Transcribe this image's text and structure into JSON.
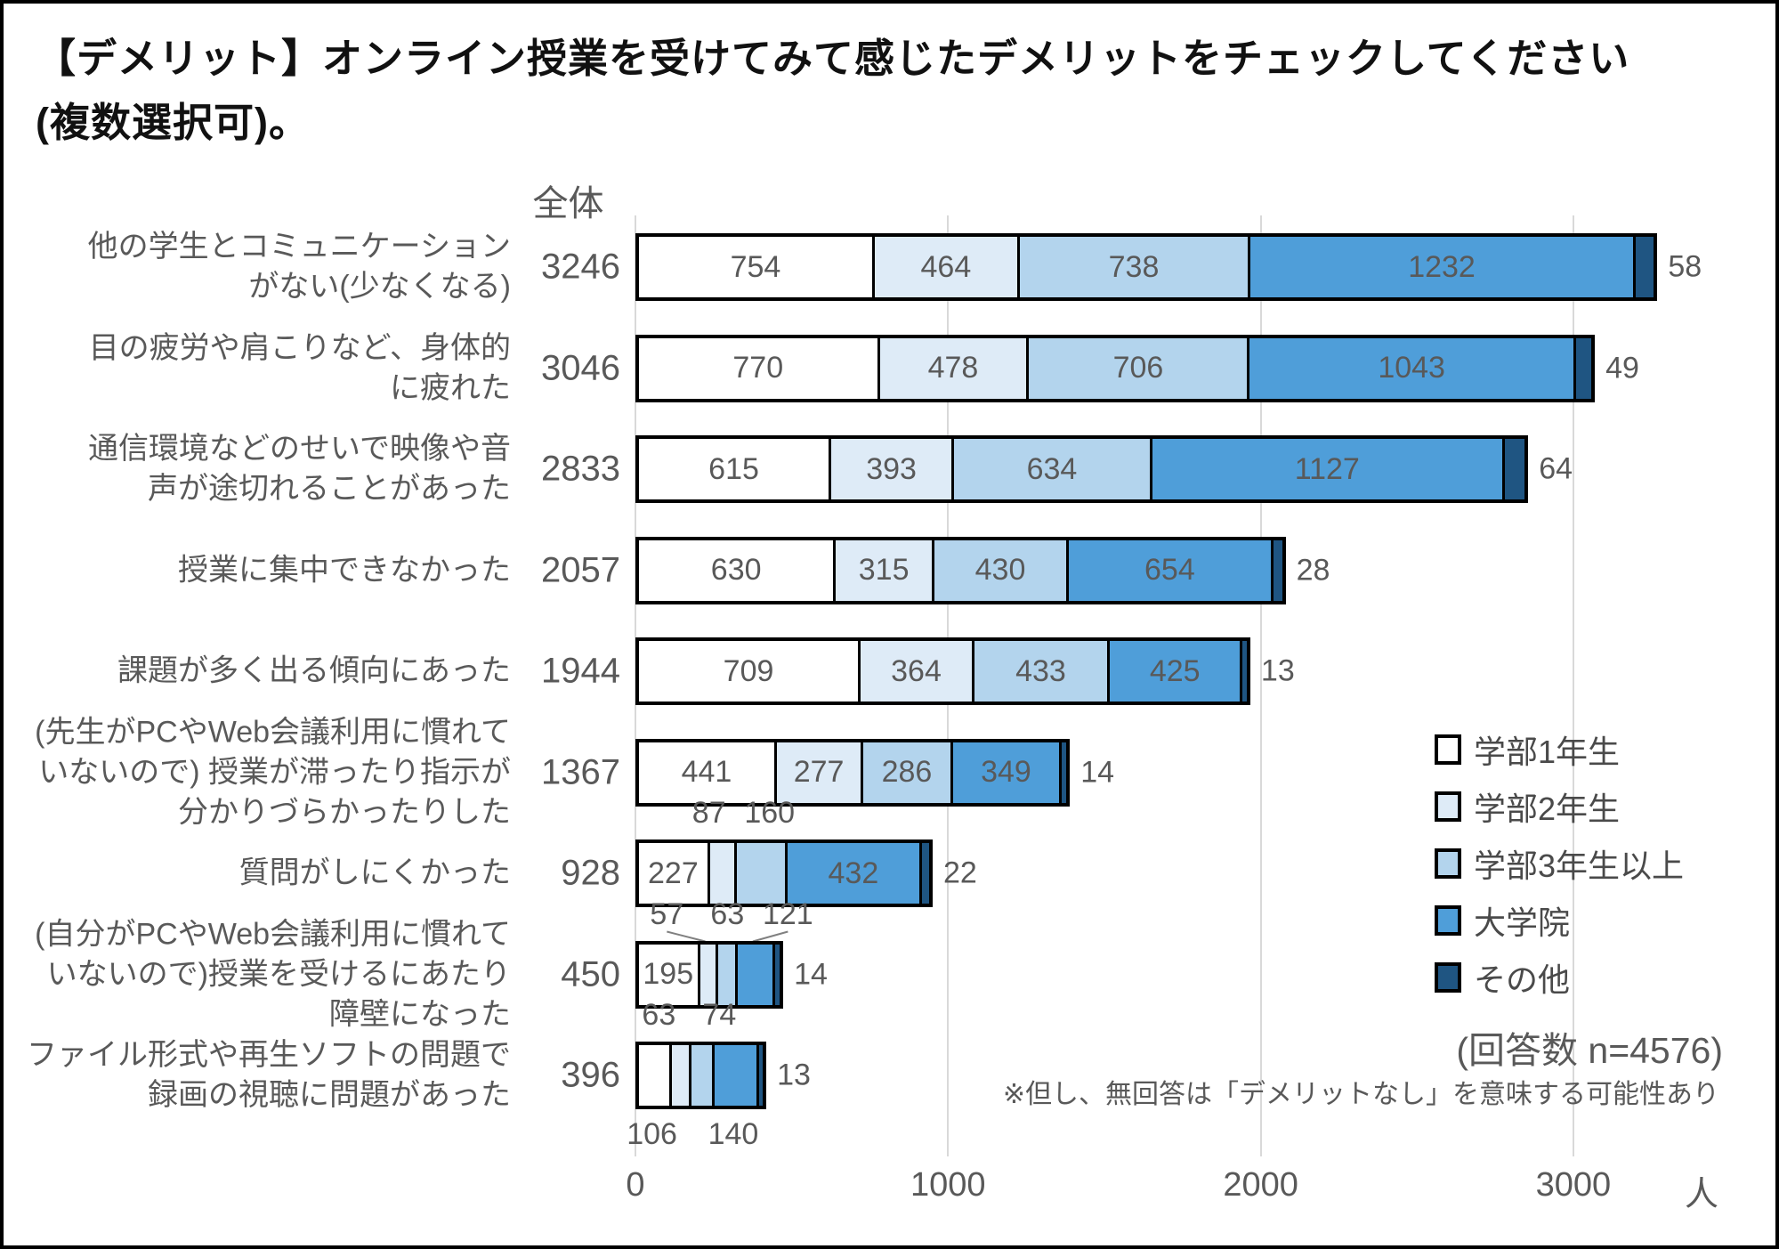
{
  "title": {
    "line1": "【デメリット】オンライン授業を受けてみて感じたデメリットをチェックしてください",
    "line2": "(複数選択可)。"
  },
  "chart_data": {
    "type": "bar",
    "stacked": true,
    "orientation": "horizontal",
    "header_total": "全体",
    "x_axis": {
      "ticks": [
        0,
        1000,
        2000,
        3000
      ],
      "max": 3450,
      "unit_label": "人",
      "grid": true
    },
    "legend_position": "right-lower",
    "legend": [
      {
        "label": "学部1年生",
        "color": "#FFFFFF"
      },
      {
        "label": "学部2年生",
        "color": "#DEEBF7"
      },
      {
        "label": "学部3年生以上",
        "color": "#B3D4ED"
      },
      {
        "label": "大学院",
        "color": "#4F9ED9"
      },
      {
        "label": "その他",
        "color": "#1F5582"
      }
    ],
    "n_note": "(回答数 n=4576)",
    "note": "※但し、無回答は「デメリットなし」を意味する可能性あり",
    "rows": [
      {
        "label_lines": [
          "他の学生とコミュニケーション",
          "がない(少なくなる)"
        ],
        "total": 3246,
        "values": [
          754,
          464,
          738,
          1232,
          58
        ],
        "label_pos": [
          "inside",
          "inside",
          "inside",
          "inside",
          "right"
        ]
      },
      {
        "label_lines": [
          "目の疲労や肩こりなど、身体的",
          "に疲れた"
        ],
        "total": 3046,
        "values": [
          770,
          478,
          706,
          1043,
          49
        ],
        "label_pos": [
          "inside",
          "inside",
          "inside",
          "inside",
          "right"
        ]
      },
      {
        "label_lines": [
          "通信環境などのせいで映像や音",
          "声が途切れることがあった"
        ],
        "total": 2833,
        "values": [
          615,
          393,
          634,
          1127,
          64
        ],
        "label_pos": [
          "inside",
          "inside",
          "inside",
          "inside",
          "right"
        ]
      },
      {
        "label_lines": [
          "授業に集中できなかった"
        ],
        "total": 2057,
        "values": [
          630,
          315,
          430,
          654,
          28
        ],
        "label_pos": [
          "inside",
          "inside",
          "inside",
          "inside",
          "right"
        ]
      },
      {
        "label_lines": [
          "課題が多く出る傾向にあった"
        ],
        "total": 1944,
        "values": [
          709,
          364,
          433,
          425,
          13
        ],
        "label_pos": [
          "inside",
          "inside",
          "inside",
          "inside",
          "right"
        ]
      },
      {
        "label_lines": [
          "(先生がPCやWeb会議利用に慣れて",
          "いないので) 授業が滞ったり指示が",
          "分かりづらかったりした"
        ],
        "total": 1367,
        "values": [
          441,
          277,
          286,
          349,
          14
        ],
        "label_pos": [
          "inside",
          "inside",
          "inside",
          "inside",
          "right"
        ]
      },
      {
        "label_lines": [
          "質問がしにくかった"
        ],
        "total": 928,
        "values": [
          227,
          87,
          160,
          432,
          22
        ],
        "label_pos": [
          "inside",
          "above",
          "above",
          "inside",
          "right"
        ]
      },
      {
        "label_lines": [
          "(自分がPCやWeb会議利用に慣れて",
          "いないので)授業を受けるにあたり",
          "障壁になった"
        ],
        "total": 450,
        "values": [
          195,
          57,
          63,
          121,
          14
        ],
        "label_pos": [
          "inside",
          "above",
          "above",
          "above",
          "right"
        ]
      },
      {
        "label_lines": [
          "ファイル形式や再生ソフトの問題で",
          "録画の視聴に問題があった"
        ],
        "total": 396,
        "values": [
          106,
          63,
          74,
          140,
          13
        ],
        "label_pos": [
          "below",
          "above",
          "above",
          "below",
          "right"
        ]
      }
    ],
    "colors": {
      "segments": [
        "#FFFFFF",
        "#DEEBF7",
        "#B3D4ED",
        "#4F9ED9",
        "#1F5582"
      ],
      "bar_border": "#000000",
      "grid": "#D9D9D9",
      "value_text": "#595959",
      "label_text": "#595959",
      "legend_text": "#4a4a4a",
      "leader_line": "#808080"
    }
  }
}
